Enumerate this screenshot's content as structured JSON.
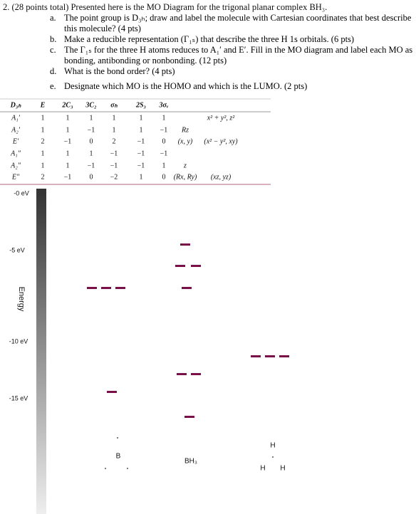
{
  "question": {
    "header": "2. (28 points total) Presented here is the MO Diagram for the trigonal planar complex BH₃.",
    "items": [
      {
        "letter": "a.",
        "text": "The point group is D₃ₕ; draw and label the molecule with Cartesian coordinates that best describe this molecule? (4 pts)"
      },
      {
        "letter": "b.",
        "text": "Make a reducible representation (Γ₁ₛ) that describe the three H 1s orbitals. (6 pts)"
      },
      {
        "letter": "c.",
        "text": "The Γ₁ₛ for the three H atoms reduces to A₁′ and E′. Fill in the MO diagram and label each MO as bonding, antibonding or nonbonding. (12 pts)"
      },
      {
        "letter": "d.",
        "text": "What is the bond order? (4 pts)"
      },
      {
        "letter": "e.",
        "text": "Designate which MO is the HOMO and which is the LUMO. (2 pts)"
      }
    ]
  },
  "table": {
    "header": [
      "D₃ₕ",
      "E",
      "2C₃",
      "3C₂",
      "σₕ",
      "2S₃",
      "3σᵥ"
    ],
    "rows": [
      [
        "A₁′",
        "1",
        "1",
        "1",
        "1",
        "1",
        "1",
        null,
        "x² + y², z²"
      ],
      [
        "A₂′",
        "1",
        "1",
        "−1",
        "1",
        "1",
        "−1",
        "Rz",
        null
      ],
      [
        "E′",
        "2",
        "−1",
        "0",
        "2",
        "−1",
        "0",
        "(x, y)",
        "(x² − y², xy)"
      ],
      [
        "A₁″",
        "1",
        "1",
        "1",
        "−1",
        "−1",
        "−1",
        null,
        null
      ],
      [
        "A₂″",
        "1",
        "1",
        "−1",
        "−1",
        "−1",
        "1",
        "z",
        null
      ],
      [
        "E″",
        "2",
        "−1",
        "0",
        "−2",
        "1",
        "0",
        "(Rx, Ry)",
        "(xz, yz)"
      ]
    ]
  },
  "diagram": {
    "energy_labels": [
      "-0 eV",
      "-5 eV",
      "-10 eV",
      "-15 eV"
    ],
    "axis_label": "Energy",
    "columns": {
      "left": "B",
      "middle": "BH₃",
      "right_top": "H",
      "right_left": "H",
      "right_right": "H"
    }
  }
}
